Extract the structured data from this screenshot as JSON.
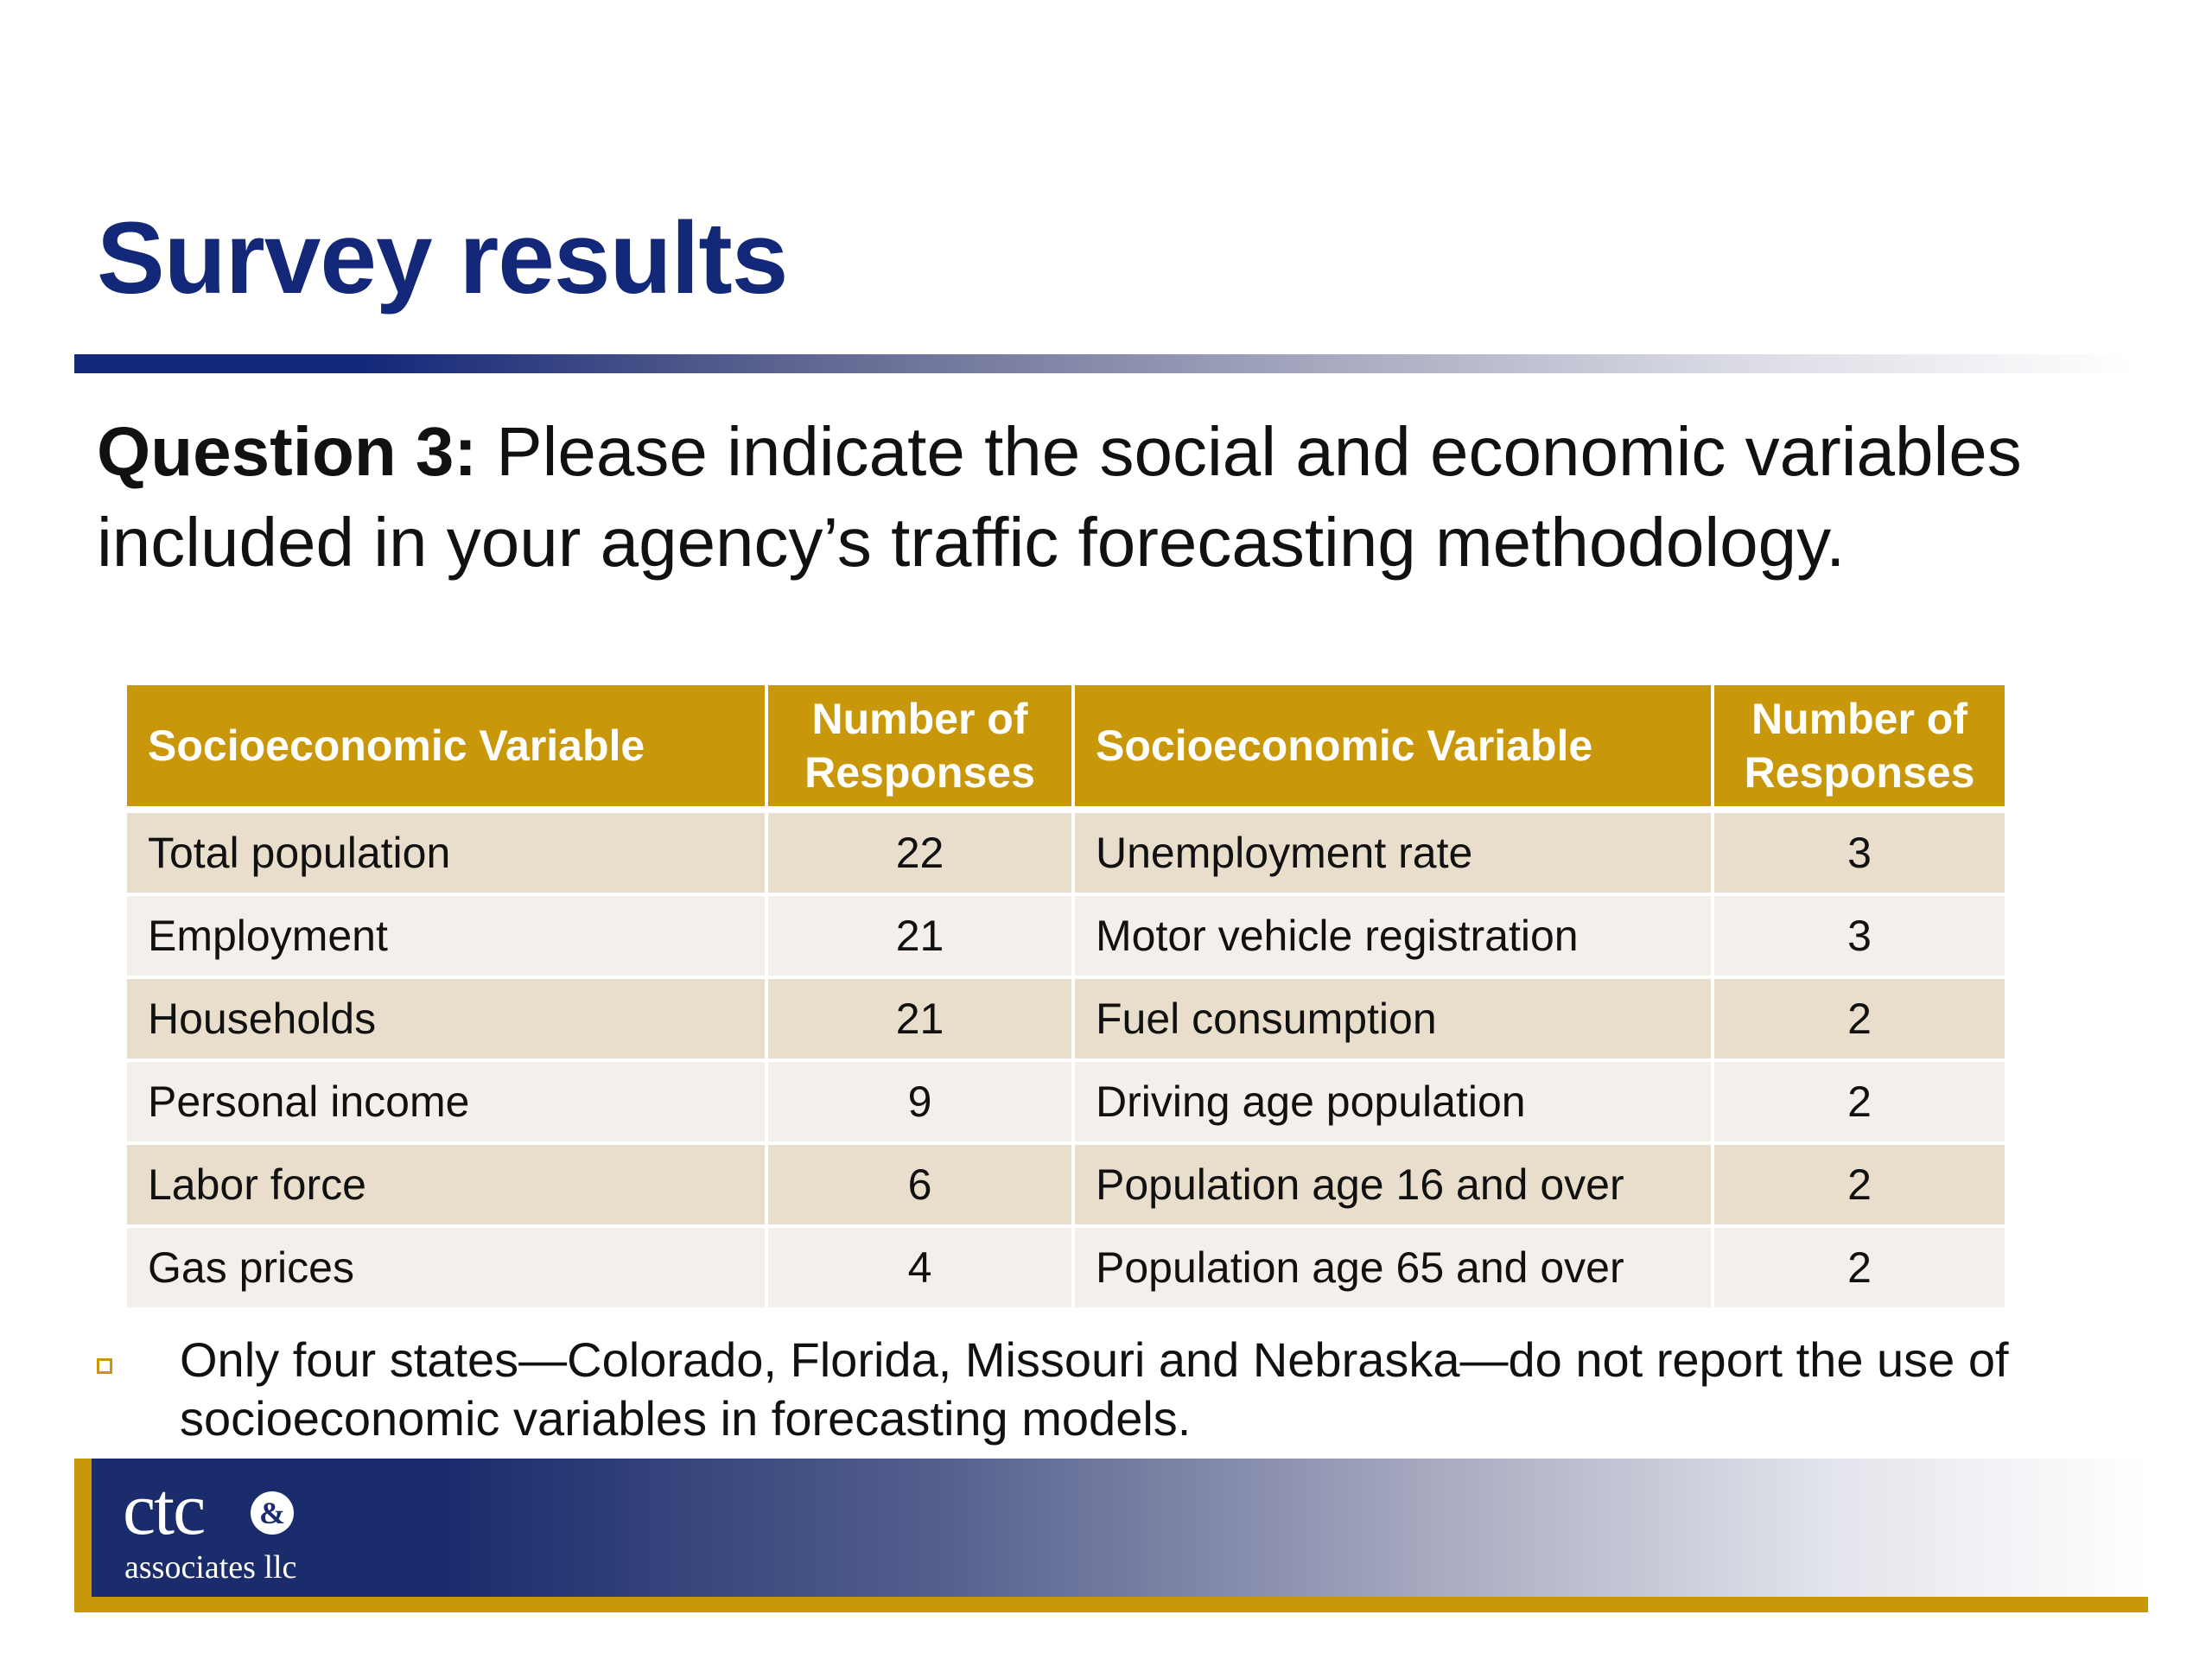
{
  "slide": {
    "title": "Survey results",
    "question_label": "Question 3:",
    "question_text": " Please indicate the social and economic variables included in your agency’s traffic forecasting methodology."
  },
  "table": {
    "headers": {
      "variable_left": "Socioeconomic Variable",
      "responses_left": "Number of Responses",
      "variable_right": "Socioeconomic Variable",
      "responses_right": "Number of Responses"
    },
    "rows": [
      {
        "var_left": "Total population",
        "num_left": "22",
        "var_right": "Unemployment rate",
        "num_right": "3"
      },
      {
        "var_left": "Employment",
        "num_left": "21",
        "var_right": "Motor vehicle registration",
        "num_right": "3"
      },
      {
        "var_left": "Households",
        "num_left": "21",
        "var_right": "Fuel consumption",
        "num_right": "2"
      },
      {
        "var_left": "Personal income",
        "num_left": "9",
        "var_right": "Driving age population",
        "num_right": "2"
      },
      {
        "var_left": "Labor force",
        "num_left": "6",
        "var_right": "Population age 16 and over",
        "num_right": "2"
      },
      {
        "var_left": "Gas prices",
        "num_left": "4",
        "var_right": "Population age 65 and over",
        "num_right": "2"
      }
    ]
  },
  "note": {
    "text": "Only four states—Colorado, Florida, Missouri and Nebraska—do not report the use of socioeconomic variables in forecasting models."
  },
  "logo": {
    "main": "ctc",
    "ampersand": "&",
    "sub": "associates llc"
  },
  "colors": {
    "title_blue": "#14287a",
    "header_gold": "#c9980a",
    "row_odd": "#e9decb",
    "row_even": "#f4efea",
    "footer_navy": "#1a2c6c"
  }
}
